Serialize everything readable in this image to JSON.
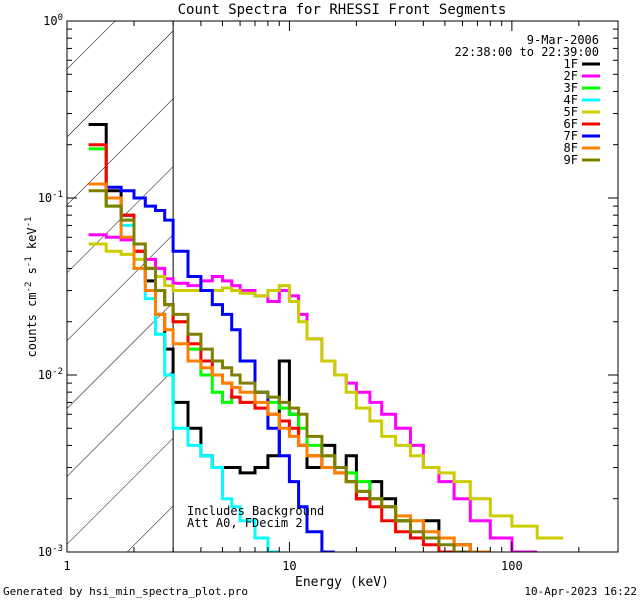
{
  "chart_data": {
    "type": "line",
    "title": "Count Spectra for RHESSI Front Segments",
    "xlabel": "Energy (keV)",
    "ylabel_base": "counts cm",
    "ylabel_sup1": "-2",
    "ylabel_mid": " s",
    "ylabel_sup2": "-1",
    "ylabel_end": " keV",
    "ylabel_sup3": "-1",
    "xscale": "log",
    "yscale": "log",
    "xlim": [
      1,
      300
    ],
    "ylim": [
      0.001,
      1
    ],
    "x_ticks": [
      {
        "value": 1,
        "label": "1"
      },
      {
        "value": 10,
        "label": "10"
      },
      {
        "value": 100,
        "label": "100"
      }
    ],
    "y_ticks": [
      {
        "value": 1,
        "base": "10",
        "exp": "0"
      },
      {
        "value": 0.1,
        "base": "10",
        "exp": "-1"
      },
      {
        "value": 0.01,
        "base": "10",
        "exp": "-2"
      },
      {
        "value": 0.001,
        "base": "10",
        "exp": "-3"
      }
    ],
    "date": "9-Mar-2006",
    "time_range": "22:38:00 to 22:39:00",
    "shaded_region": {
      "x_start": 1,
      "x_end": 3,
      "pattern": "diagonal hatch"
    },
    "annotations": [
      "Includes Background",
      "Att A0, FDecim 2"
    ],
    "energy_bin_edges": [
      1.25,
      1.5,
      1.75,
      2.0,
      2.25,
      2.5,
      2.75,
      3.0,
      3.5,
      4.0,
      4.5,
      5.0,
      5.5,
      6.0,
      7.0,
      8.0,
      9.0,
      10.0,
      11.0,
      12.0,
      14.0,
      16.0,
      18.0,
      20.0,
      23.0,
      26.0,
      30.0,
      35.0,
      40.0,
      47.0,
      55.0,
      65.0,
      80.0,
      100.0,
      130.0,
      170.0
    ],
    "series": [
      {
        "name": "1F",
        "color": "#000000",
        "values": [
          0.26,
          0.11,
          0.08,
          0.05,
          0.034,
          0.022,
          0.014,
          0.007,
          0.005,
          0.0035,
          0.003,
          0.003,
          0.003,
          0.0028,
          0.003,
          0.0035,
          0.012,
          0.006,
          0.004,
          0.003,
          0.004,
          0.003,
          0.0035,
          0.002,
          0.0025,
          0.002,
          0.0015,
          0.0012,
          0.0015,
          0.0012,
          0.0011,
          0.001,
          null,
          null,
          null
        ]
      },
      {
        "name": "2F",
        "color": "#ff00ff",
        "values": [
          0.062,
          0.06,
          0.058,
          0.05,
          0.045,
          0.04,
          0.035,
          0.033,
          0.032,
          0.034,
          0.036,
          0.034,
          0.032,
          0.03,
          0.028,
          0.026,
          0.03,
          0.028,
          0.022,
          0.016,
          0.012,
          0.01,
          0.009,
          0.008,
          0.007,
          0.006,
          0.005,
          0.004,
          0.003,
          0.0025,
          0.002,
          0.0015,
          0.0012,
          0.001,
          null
        ]
      },
      {
        "name": "3F",
        "color": "#00ff00",
        "values": [
          0.19,
          0.09,
          0.075,
          0.05,
          0.04,
          0.03,
          0.025,
          0.02,
          0.014,
          0.01,
          0.008,
          0.007,
          0.0075,
          0.007,
          0.008,
          0.007,
          0.0065,
          0.006,
          0.005,
          0.004,
          0.0035,
          0.003,
          0.0028,
          0.0025,
          0.002,
          0.0018,
          0.0015,
          0.0012,
          0.0012,
          0.001,
          0.001,
          null,
          null,
          null,
          null
        ]
      },
      {
        "name": "4F",
        "color": "#00ffff",
        "values": [
          0.12,
          0.1,
          0.07,
          0.04,
          0.027,
          0.017,
          0.01,
          0.005,
          0.004,
          0.0035,
          0.003,
          0.002,
          0.0018,
          0.0015,
          0.0012,
          0.001,
          null,
          null,
          null,
          null,
          null,
          null,
          null,
          null,
          null,
          null,
          null,
          null,
          null,
          null,
          null,
          null,
          null,
          null,
          null
        ]
      },
      {
        "name": "5F",
        "color": "#cccc00",
        "values": [
          0.055,
          0.05,
          0.048,
          0.045,
          0.04,
          0.036,
          0.032,
          0.03,
          0.03,
          0.03,
          0.03,
          0.031,
          0.03,
          0.029,
          0.028,
          0.03,
          0.032,
          0.026,
          0.02,
          0.016,
          0.012,
          0.01,
          0.008,
          0.0065,
          0.0055,
          0.0045,
          0.004,
          0.0035,
          0.003,
          0.0028,
          0.0025,
          0.002,
          0.0016,
          0.0014,
          0.0012
        ]
      },
      {
        "name": "6F",
        "color": "#ff0000",
        "values": [
          0.2,
          0.1,
          0.08,
          0.05,
          0.04,
          0.03,
          0.025,
          0.02,
          0.015,
          0.012,
          0.01,
          0.009,
          0.0075,
          0.007,
          0.0065,
          0.006,
          0.0055,
          0.005,
          0.004,
          0.0035,
          0.003,
          0.0028,
          0.0025,
          0.002,
          0.0018,
          0.0015,
          0.0013,
          0.0012,
          0.0011,
          0.001,
          null,
          null,
          null,
          null,
          null
        ]
      },
      {
        "name": "7F",
        "color": "#0000ff",
        "values": [
          0.12,
          0.115,
          0.11,
          0.1,
          0.09,
          0.085,
          0.075,
          0.05,
          0.036,
          0.03,
          0.025,
          0.022,
          0.018,
          0.012,
          0.008,
          0.005,
          0.0035,
          0.0025,
          0.0018,
          0.0013,
          0.001,
          null,
          null,
          null,
          null,
          null,
          null,
          null,
          null,
          null,
          null,
          null,
          null,
          null,
          null
        ]
      },
      {
        "name": "8F",
        "color": "#ff8000",
        "values": [
          0.12,
          0.1,
          0.06,
          0.04,
          0.03,
          0.022,
          0.018,
          0.015,
          0.012,
          0.011,
          0.01,
          0.009,
          0.0085,
          0.008,
          0.007,
          0.006,
          0.005,
          0.0045,
          0.004,
          0.0035,
          0.003,
          0.0028,
          0.0025,
          0.0022,
          0.002,
          0.0018,
          0.0016,
          0.0015,
          0.0013,
          0.0012,
          0.0011,
          0.001,
          null,
          null,
          null
        ]
      },
      {
        "name": "9F",
        "color": "#808000",
        "values": [
          0.11,
          0.09,
          0.075,
          0.055,
          0.04,
          0.03,
          0.025,
          0.022,
          0.017,
          0.014,
          0.012,
          0.011,
          0.01,
          0.009,
          0.008,
          0.0075,
          0.007,
          0.0065,
          0.006,
          0.0045,
          0.0035,
          0.003,
          0.0025,
          0.0022,
          0.002,
          0.0018,
          0.0015,
          0.0013,
          0.0012,
          0.0011,
          0.001,
          null,
          null,
          null,
          null
        ]
      }
    ]
  },
  "footer": {
    "generated_by": "Generated by hsi_min_spectra_plot.pro",
    "timestamp": "10-Apr-2023 16:22"
  }
}
